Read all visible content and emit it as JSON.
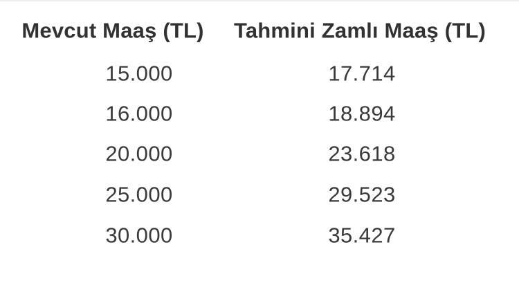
{
  "table": {
    "headers": [
      "Mevcut Maaş (TL)",
      "Tahmini Zamlı Maaş (TL)"
    ],
    "rows": [
      [
        "15.000",
        "17.714"
      ],
      [
        "16.000",
        "18.894"
      ],
      [
        "20.000",
        "23.618"
      ],
      [
        "25.000",
        "29.523"
      ],
      [
        "30.000",
        "35.427"
      ]
    ]
  },
  "colors": {
    "background": "#ffffff",
    "header_text": "#323232",
    "value_text": "#3a3a3a",
    "top_hairline": "#efefef"
  },
  "chart_data": {
    "type": "table",
    "title": "",
    "columns": [
      "Mevcut Maaş (TL)",
      "Tahmini Zamlı Maaş (TL)"
    ],
    "rows": [
      [
        15000,
        17714
      ],
      [
        16000,
        18894
      ],
      [
        20000,
        23618
      ],
      [
        25000,
        29523
      ],
      [
        30000,
        35427
      ]
    ],
    "rows_display": [
      [
        "15.000",
        "17.714"
      ],
      [
        "16.000",
        "18.894"
      ],
      [
        "20.000",
        "23.618"
      ],
      [
        "25.000",
        "29.523"
      ],
      [
        "30.000",
        "35.427"
      ]
    ],
    "number_format": "tr-TR thousands separator (dot)",
    "grid": false,
    "notes": "Plain white-background salary table: current salary vs estimated raised salary in Turkish lira"
  }
}
